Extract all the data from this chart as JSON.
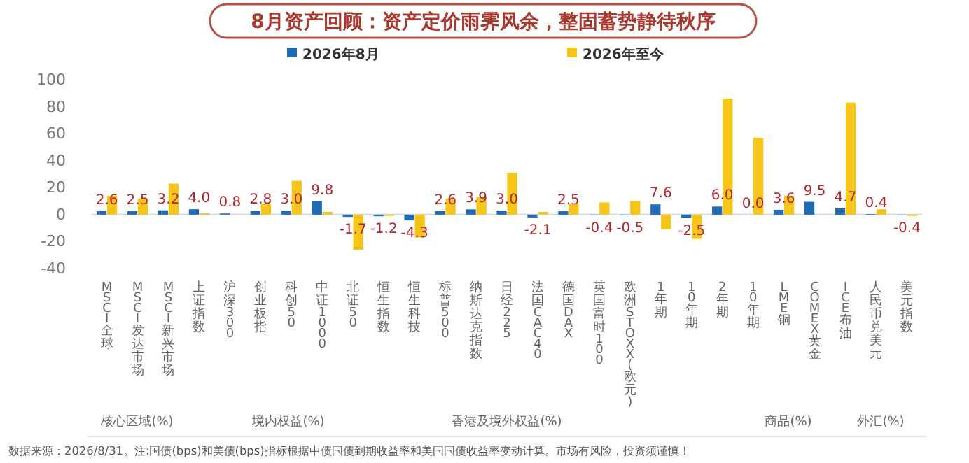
{
  "chart_data": {
    "type": "bar",
    "title": "8月资产回顾：资产定价雨霁风余，整固蓄势静待秋序",
    "categories": [
      "MSCI全球",
      "MSCI发达市场",
      "MSCI新兴市场",
      "上证指数",
      "沪深300",
      "创业板指",
      "科创50",
      "中证1000",
      "北证50",
      "恒生指数",
      "恒生科技",
      "标普500",
      "纳斯达克指数",
      "日经225",
      "法国CAC40",
      "德国DAX",
      "英国富时100",
      "欧洲STOXX(欧元)",
      "1年期",
      "10年期",
      "2年期",
      "10年期",
      "LME铜",
      "COMEX黄金",
      "ICE布油",
      "人民币兑美元",
      "美元指数"
    ],
    "series": [
      {
        "name": "2026年8月",
        "color": "#1f6bb5",
        "values": [
          2.6,
          2.5,
          3.2,
          4.0,
          0.8,
          2.8,
          3.0,
          9.8,
          -1.7,
          -1.2,
          -4.3,
          2.6,
          3.9,
          3.0,
          -2.1,
          2.5,
          -0.4,
          -0.5,
          7.6,
          -2.5,
          6.0,
          0.0,
          3.6,
          9.5,
          4.7,
          0.4,
          -0.4
        ],
        "value_labels": [
          "2.6",
          "2.5",
          "3.2",
          "4.0",
          "0.8",
          "2.8",
          "3.0",
          "9.8",
          "-1.7",
          "-1.2",
          "-4.3",
          "2.6",
          "3.9",
          "3.0",
          "-2.1",
          "2.5",
          "-0.4",
          "-0.5",
          "7.6",
          "-2.5",
          "6.0",
          "0.0",
          "3.6",
          "9.5",
          "4.7",
          "0.4",
          "-0.4"
        ]
      },
      {
        "name": "2026年至今",
        "color": "#f5c518",
        "values": [
          14,
          12,
          23,
          1,
          0,
          8,
          25,
          2,
          -26,
          -1,
          -17,
          12,
          13,
          31,
          2,
          8,
          9,
          10,
          -11,
          -18,
          86,
          57,
          14,
          0,
          83,
          4,
          -1
        ]
      }
    ],
    "ylim": [
      -40,
      100
    ],
    "yticks": [
      -40,
      -20,
      0,
      20,
      40,
      60,
      80,
      100
    ],
    "grid": false,
    "legend": "top",
    "annotations": [
      "核心区域(%)",
      "境内权益(%)",
      "香港及境外权益(%)",
      "商品(%)",
      "外汇(%)",
      "数据来源：2026/8/31。注:国债(bps)和美债(bps)指标根据中债国债到期收益率和美国国债收益率变动计算。市场有风险，投资须谨慎！"
    ]
  }
}
